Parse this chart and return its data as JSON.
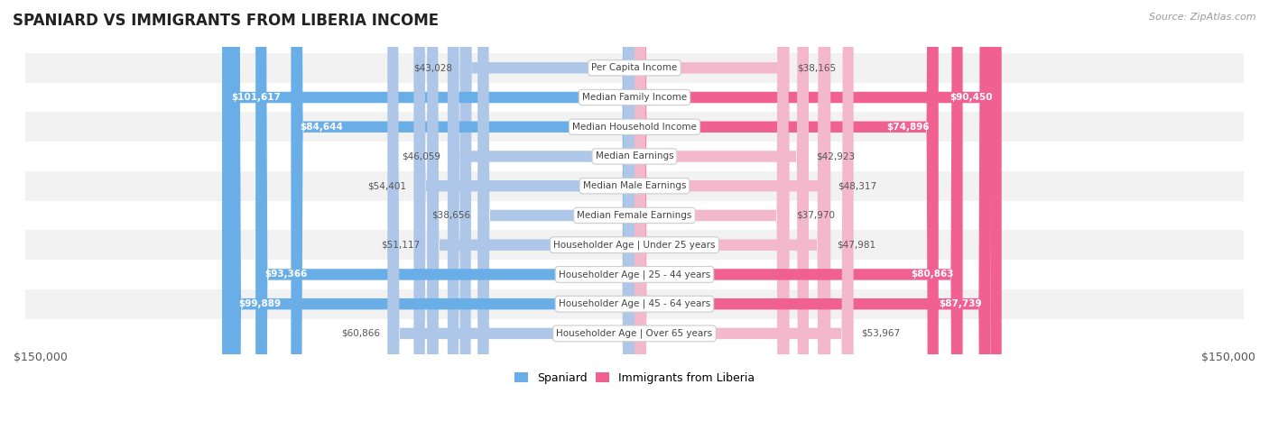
{
  "title": "SPANIARD VS IMMIGRANTS FROM LIBERIA INCOME",
  "source": "Source: ZipAtlas.com",
  "categories": [
    "Per Capita Income",
    "Median Family Income",
    "Median Household Income",
    "Median Earnings",
    "Median Male Earnings",
    "Median Female Earnings",
    "Householder Age | Under 25 years",
    "Householder Age | 25 - 44 years",
    "Householder Age | 45 - 64 years",
    "Householder Age | Over 65 years"
  ],
  "spaniard_values": [
    43028,
    101617,
    84644,
    46059,
    54401,
    38656,
    51117,
    93366,
    99889,
    60866
  ],
  "liberia_values": [
    38165,
    90450,
    74896,
    42923,
    48317,
    37970,
    47981,
    80863,
    87739,
    53967
  ],
  "spaniard_labels": [
    "$43,028",
    "$101,617",
    "$84,644",
    "$46,059",
    "$54,401",
    "$38,656",
    "$51,117",
    "$93,366",
    "$99,889",
    "$60,866"
  ],
  "liberia_labels": [
    "$38,165",
    "$90,450",
    "$74,896",
    "$42,923",
    "$48,317",
    "$37,970",
    "$47,981",
    "$80,863",
    "$87,739",
    "$53,967"
  ],
  "max_value": 150000,
  "spaniard_color_light": "#aec6e8",
  "spaniard_color_dark": "#6aaee8",
  "liberia_color_light": "#f4b8cc",
  "liberia_color_dark": "#f06090",
  "bg_color": "#ffffff",
  "row_bg_odd": "#f2f2f2",
  "row_bg_even": "#ffffff",
  "legend_spaniard": "Spaniard",
  "legend_liberia": "Immigrants from Liberia",
  "xlabel_left": "$150,000",
  "xlabel_right": "$150,000",
  "large_threshold": 70000
}
